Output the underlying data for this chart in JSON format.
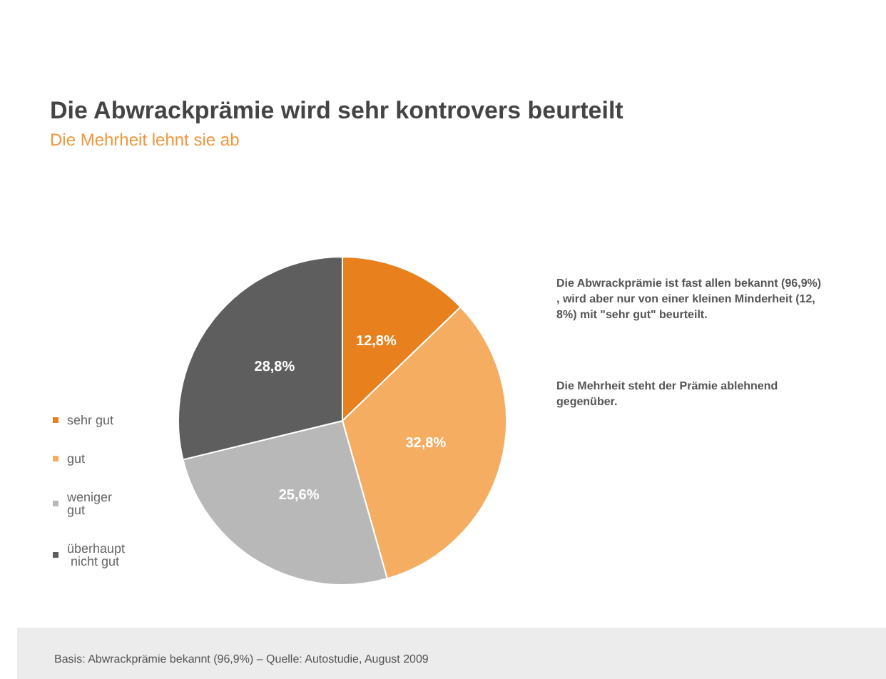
{
  "chart_data": {
    "type": "pie",
    "title": "Die Abwrackprämie wird sehr kontrovers beurteilt",
    "subtitle": "Die Mehrheit lehnt sie ab",
    "categories": [
      "sehr gut",
      "gut",
      "weniger gut",
      "überhaupt nicht gut"
    ],
    "values": [
      12.8,
      32.8,
      25.6,
      28.8
    ],
    "value_labels": [
      "12,8%",
      "32,8%",
      "25,6%",
      "28,8%"
    ],
    "colors": [
      "#e8801e",
      "#f5ad62",
      "#b8b8b8",
      "#5e5e5e"
    ],
    "legend": "left",
    "annotations": [
      "Die Abwrackprämie ist fast allen bekannt (96,9%), wird aber nur von einer kleinen Minderheit (12,8%) mit \"sehr gut\" beurteilt.",
      "Die Mehrheit steht der Prämie ablehnend gegenüber.",
      "Basis: Abwrackprämie bekannt (96,9%) – Quelle: Autostudie, August 2009"
    ]
  }
}
